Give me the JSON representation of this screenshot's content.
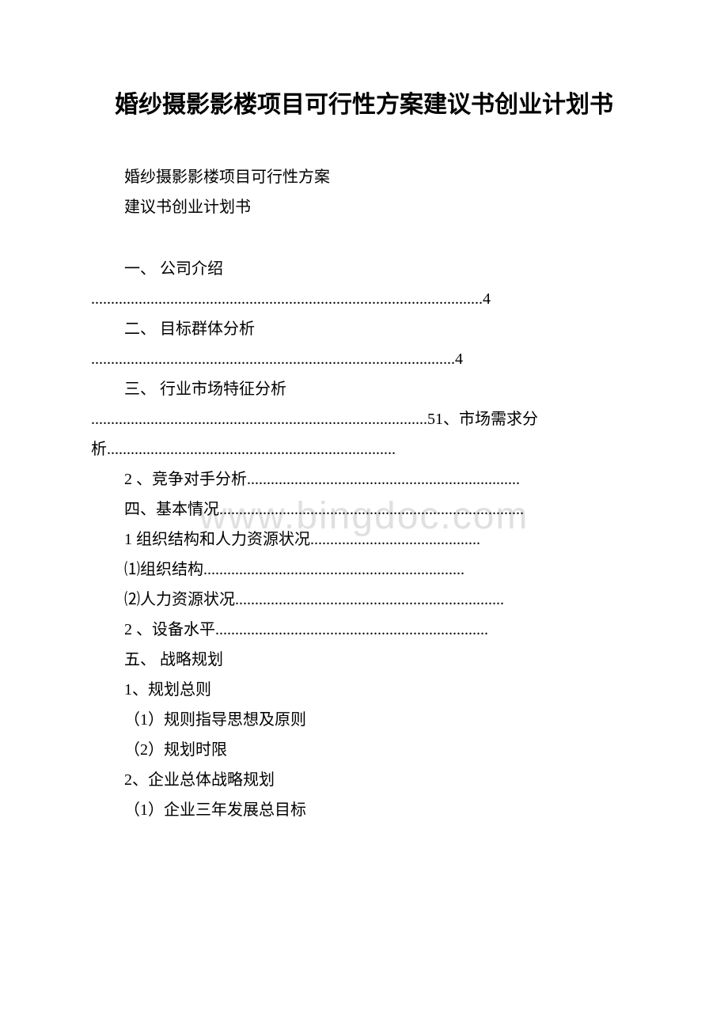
{
  "document": {
    "title": "婚纱摄影影楼项目可行性方案建议书创业计划书",
    "subtitle_line1": "婚纱摄影影楼项目可行性方案",
    "subtitle_line2": "建议书创业计划书",
    "watermark": "www.bingdoc.com",
    "toc": {
      "item1": "一、 公司介绍",
      "item1_dots": "...................................................................................................4",
      "item2": "二、 目标群体分析",
      "item2_dots": "............................................................................................4",
      "item3": "三、 行业市场特征分析",
      "item3_dots": ".....................................................................................51、市场需求分析.........................................................................",
      "item4": "2 、竞争对手分析.....................................................................",
      "item5": "四、基本情况.............................................................................",
      "item6": "1 组织结构和人力资源状况...........................................",
      "item7": "⑴组织结构..................................................................",
      "item8": "⑵人力资源状况....................................................................",
      "item9": " 2 、设备水平.....................................................................",
      "item10": "五、 战略规划",
      "item11": "1、规划总则",
      "item12": "（1）规则指导思想及原则",
      "item13": "（2）规划时限",
      "item14": "2、企业总体战略规划",
      "item15": "（1）企业三年发展总目标"
    }
  },
  "styles": {
    "background_color": "#ffffff",
    "text_color": "#000000",
    "watermark_color": "#e0e0e0",
    "title_fontsize": 30,
    "body_fontsize": 20,
    "watermark_fontsize": 48
  }
}
